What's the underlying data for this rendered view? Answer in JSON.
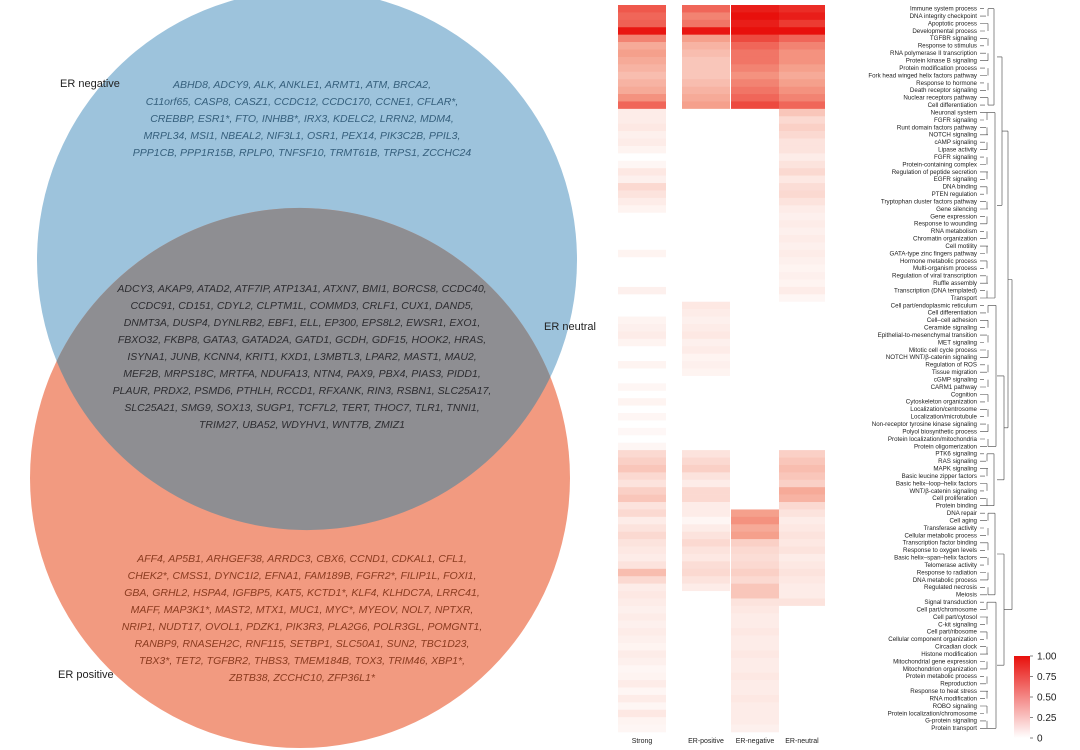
{
  "venn": {
    "sets": [
      {
        "label": "ER negative",
        "color": "#9dc3dc"
      },
      {
        "label": "ER neutral",
        "color": "#8e8e92"
      },
      {
        "label": "ER positive",
        "color": "#f29a80"
      }
    ],
    "negative_genes": [
      "ABHD8, ADCY9, ALK, ANKLE1, ARMT1, ATM, BRCA2,",
      "C11orf65, CASP8, CASZ1, CCDC12, CCDC170, CCNE1, CFLAR*,",
      "CREBBP, ESR1*, FTO, INHBB*, IRX3, KDELC2, LRRN2, MDM4,",
      "MRPL34, MSI1, NBEAL2, NIF3L1, OSR1, PEX14, PIK3C2B, PPIL3,",
      "PPP1CB, PPP1R15B, RPLP0, TNFSF10, TRMT61B, TRPS1, ZCCHC24"
    ],
    "neutral_genes": [
      "ADCY3, AKAP9, ATAD2, ATF7IP, ATP13A1, ATXN7, BMI1, BORCS8, CCDC40,",
      "CCDC91, CD151, CDYL2, CLPTM1L, COMMD3, CRLF1, CUX1, DAND5,",
      "DNMT3A, DUSP4, DYNLRB2, EBF1, ELL, EP300, EPS8L2, EWSR1, EXO1,",
      "FBXO32, FKBP8, GATA3, GATAD2A, GATD1, GCDH, GDF15, HOOK2, HRAS,",
      "ISYNA1, JUNB, KCNN4, KRIT1, KXD1, L3MBTL3, LPAR2, MAST1, MAU2,",
      "MEF2B, MRPS18C, MRTFA, NDUFA13, NTN4, PAX9, PBX4, PIAS3, PIDD1,",
      "PLAUR, PRDX2, PSMD6, PTHLH, RCCD1, RFXANK, RIN3, RSBN1, SLC25A17,",
      "SLC25A21, SMG9, SOX13, SUGP1, TCF7L2, TERT, THOC7, TLR1, TNNI1,",
      "TRIM27, UBA52, WDYHV1, WNT7B, ZMIZ1"
    ],
    "positive_genes": [
      "AFF4, AP5B1, ARHGEF38, ARRDC3, CBX6, CCND1, CDKAL1, CFL1,",
      "CHEK2*, CMSS1, DYNC1I2, EFNA1, FAM189B, FGFR2*, FILIP1L, FOXI1,",
      "GBA, GRHL2, HSPA4, IGFBP5, KAT5, KCTD1*, KLF4, KLHDC7A, LRRC41,",
      "MAFF, MAP3K1*, MAST2, MTX1, MUC1, MYC*, MYEOV, NOL7, NPTXR,",
      "NRIP1, NUDT17, OVOL1, PDZK1, PIK3R3, PLA2G6, POLR3GL, POMGNT1,",
      "RANBP9, RNASEH2C, RNF115, SETBP1, SLC50A1, SUN2, TBC1D23,",
      "TBX3*, TET2, TGFBR2, THBS3, TMEM184B, TOX3, TRIM46, XBP1*,",
      "ZBTB38, ZCCHC10, ZFP36L1*"
    ]
  },
  "chart_data": {
    "type": "heatmap",
    "columns": [
      "Strong",
      "ER-positive",
      "ER-negative",
      "ER-neutral"
    ],
    "colorbar": {
      "min": 0,
      "max": 1,
      "ticks": [
        "1.00",
        "0.75",
        "0.50",
        "0.25",
        "0"
      ],
      "low_color": "#ffffff",
      "high_color": "#e8100c"
    },
    "rows": [
      "Immune system process",
      "DNA integrity checkpoint",
      "Apoptotic process",
      "Developmental process",
      "TGFBR signaling",
      "Response to stimulus",
      "RNA polymerase II transcription",
      "Protein kinase B signaling",
      "Protein modification process",
      "Fork head winged helix factors pathway",
      "Response to hormone",
      "Death receptor signaling",
      "Nuclear receptors pathway",
      "Cell differentiation",
      "Neuronal system",
      "FGFR signaling",
      "Runt domain factors pathway",
      "NOTCH signaling",
      "cAMP signaling",
      "Lipase activity",
      "FGFR signaling",
      "Protein-containing complex",
      "Regulation of peptide secretion",
      "EGFR signaling",
      "DNA binding",
      "PTEN regulation",
      "Tryptophan cluster factors pathway",
      "Gene silencing",
      "Gene expression",
      "Response to wounding",
      "RNA metabolism",
      "Chromatin organization",
      "Cell motility",
      "GATA-type zinc fingers pathway",
      "Hormone metabolic process",
      "Multi-organism process",
      "Regulation of viral transcription",
      "Ruffle assembly",
      "Transcription (DNA templated)",
      "Transport",
      "Cell part/endoplasmic reticulum",
      "Cell differentiation",
      "Cell–cell adhesion",
      "Ceramide signaling",
      "Epithelial-to-mesenchymal transition",
      "MET signaling",
      "Mitotic cell cycle process",
      "NOTCH WNT/β-catenin signaling",
      "Regulation of ROS",
      "Tissue migration",
      "cGMP signaling",
      "CARM1 pathway",
      "Cognition",
      "Cytoskeleton organization",
      "Localization/centrosome",
      "Localization/microtubule",
      "Non-receptor tyrosine kinase signaling",
      "Polyol biosynthetic process",
      "Protein localization/mitochondria",
      "Protein oligomerization",
      "PTK6 signaling",
      "RAS signaling",
      "MAPK signaling",
      "Basic leucine zipper factors",
      "Basic helix–loop–helix factors",
      "WNT/β-catenin signaling",
      "Cell proliferation",
      "Protein binding",
      "DNA repair",
      "Cell aging",
      "Transferase activity",
      "Cellular metabolic process",
      "Transcription factor binding",
      "Response to oxygen levels",
      "Basic helix–span–helix factors",
      "Telomerase activity",
      "Response to radiation",
      "DNA metabolic process",
      "Regulated necrosis",
      "Meiosis",
      "Signal transduction",
      "Cell part/chromosome",
      "Cell part/cytosol",
      "C-kit signaling",
      "Cell part/ribosome",
      "Cellular component organization",
      "Circadian clock",
      "Histone modification",
      "Mitochondrial gene expression",
      "Mitochondrion organization",
      "Protein metabolic process",
      "Reproduction",
      "Response to heat stress",
      "RNA modification",
      "ROBO signaling",
      "Protein localization/chromosome",
      "G-protein signaling",
      "Protein transport"
    ],
    "values": [
      [
        0.75,
        0.7,
        0.95,
        0.9
      ],
      [
        0.7,
        0.6,
        1.0,
        0.95
      ],
      [
        0.72,
        0.65,
        0.95,
        0.85
      ],
      [
        0.98,
        0.98,
        1.0,
        1.0
      ],
      [
        0.6,
        0.5,
        0.8,
        0.7
      ],
      [
        0.45,
        0.4,
        0.7,
        0.6
      ],
      [
        0.5,
        0.35,
        0.65,
        0.55
      ],
      [
        0.45,
        0.3,
        0.65,
        0.55
      ],
      [
        0.4,
        0.3,
        0.6,
        0.5
      ],
      [
        0.35,
        0.3,
        0.55,
        0.45
      ],
      [
        0.4,
        0.35,
        0.6,
        0.5
      ],
      [
        0.45,
        0.4,
        0.65,
        0.55
      ],
      [
        0.55,
        0.45,
        0.7,
        0.6
      ],
      [
        0.7,
        0.5,
        0.8,
        0.7
      ],
      [
        0.1,
        0.0,
        0.0,
        0.3
      ],
      [
        0.1,
        0.0,
        0.0,
        0.2
      ],
      [
        0.12,
        0.0,
        0.0,
        0.25
      ],
      [
        0.08,
        0.0,
        0.0,
        0.2
      ],
      [
        0.1,
        0.0,
        0.0,
        0.15
      ],
      [
        0.06,
        0.0,
        0.0,
        0.15
      ],
      [
        0.0,
        0.0,
        0.0,
        0.1
      ],
      [
        0.05,
        0.0,
        0.0,
        0.15
      ],
      [
        0.12,
        0.0,
        0.0,
        0.2
      ],
      [
        0.08,
        0.0,
        0.0,
        0.12
      ],
      [
        0.2,
        0.0,
        0.0,
        0.18
      ],
      [
        0.15,
        0.0,
        0.0,
        0.2
      ],
      [
        0.1,
        0.0,
        0.0,
        0.15
      ],
      [
        0.06,
        0.0,
        0.0,
        0.1
      ],
      [
        0.0,
        0.0,
        0.0,
        0.08
      ],
      [
        0.0,
        0.0,
        0.0,
        0.1
      ],
      [
        0.0,
        0.0,
        0.0,
        0.08
      ],
      [
        0.0,
        0.0,
        0.0,
        0.1
      ],
      [
        0.0,
        0.0,
        0.0,
        0.08
      ],
      [
        0.06,
        0.0,
        0.0,
        0.1
      ],
      [
        0.0,
        0.0,
        0.0,
        0.08
      ],
      [
        0.0,
        0.0,
        0.0,
        0.06
      ],
      [
        0.0,
        0.0,
        0.0,
        0.08
      ],
      [
        0.0,
        0.0,
        0.0,
        0.06
      ],
      [
        0.08,
        0.0,
        0.0,
        0.1
      ],
      [
        0.0,
        0.0,
        0.0,
        0.05
      ],
      [
        0.0,
        0.12,
        0.0,
        0.0
      ],
      [
        0.0,
        0.1,
        0.0,
        0.0
      ],
      [
        0.06,
        0.08,
        0.0,
        0.0
      ],
      [
        0.08,
        0.1,
        0.0,
        0.0
      ],
      [
        0.1,
        0.12,
        0.0,
        0.0
      ],
      [
        0.06,
        0.08,
        0.0,
        0.0
      ],
      [
        0.0,
        0.1,
        0.0,
        0.0
      ],
      [
        0.0,
        0.06,
        0.0,
        0.0
      ],
      [
        0.06,
        0.08,
        0.0,
        0.0
      ],
      [
        0.0,
        0.06,
        0.0,
        0.0
      ],
      [
        0.0,
        0.0,
        0.0,
        0.0
      ],
      [
        0.05,
        0.0,
        0.0,
        0.0
      ],
      [
        0.0,
        0.0,
        0.0,
        0.0
      ],
      [
        0.06,
        0.0,
        0.0,
        0.0
      ],
      [
        0.0,
        0.0,
        0.0,
        0.0
      ],
      [
        0.05,
        0.0,
        0.0,
        0.0
      ],
      [
        0.0,
        0.0,
        0.0,
        0.0
      ],
      [
        0.04,
        0.0,
        0.0,
        0.0
      ],
      [
        0.0,
        0.0,
        0.0,
        0.0
      ],
      [
        0.05,
        0.0,
        0.0,
        0.0
      ],
      [
        0.2,
        0.15,
        0.0,
        0.25
      ],
      [
        0.25,
        0.2,
        0.0,
        0.3
      ],
      [
        0.3,
        0.25,
        0.0,
        0.35
      ],
      [
        0.2,
        0.15,
        0.0,
        0.3
      ],
      [
        0.15,
        0.1,
        0.0,
        0.25
      ],
      [
        0.25,
        0.2,
        0.0,
        0.45
      ],
      [
        0.3,
        0.2,
        0.0,
        0.4
      ],
      [
        0.15,
        0.1,
        0.0,
        0.2
      ],
      [
        0.2,
        0.1,
        0.5,
        0.15
      ],
      [
        0.1,
        0.05,
        0.55,
        0.1
      ],
      [
        0.15,
        0.1,
        0.45,
        0.12
      ],
      [
        0.2,
        0.15,
        0.5,
        0.15
      ],
      [
        0.15,
        0.2,
        0.25,
        0.12
      ],
      [
        0.12,
        0.15,
        0.2,
        0.15
      ],
      [
        0.1,
        0.12,
        0.18,
        0.1
      ],
      [
        0.15,
        0.18,
        0.2,
        0.12
      ],
      [
        0.35,
        0.2,
        0.25,
        0.15
      ],
      [
        0.2,
        0.15,
        0.2,
        0.12
      ],
      [
        0.1,
        0.1,
        0.3,
        0.1
      ],
      [
        0.12,
        0.0,
        0.3,
        0.1
      ],
      [
        0.1,
        0.0,
        0.15,
        0.15
      ],
      [
        0.08,
        0.0,
        0.12,
        0.0
      ],
      [
        0.1,
        0.0,
        0.1,
        0.0
      ],
      [
        0.08,
        0.0,
        0.1,
        0.0
      ],
      [
        0.1,
        0.0,
        0.12,
        0.0
      ],
      [
        0.08,
        0.0,
        0.1,
        0.0
      ],
      [
        0.06,
        0.0,
        0.1,
        0.0
      ],
      [
        0.1,
        0.0,
        0.12,
        0.0
      ],
      [
        0.08,
        0.0,
        0.1,
        0.0
      ],
      [
        0.05,
        0.0,
        0.1,
        0.0
      ],
      [
        0.06,
        0.0,
        0.12,
        0.0
      ],
      [
        0.1,
        0.0,
        0.1,
        0.0
      ],
      [
        0.05,
        0.0,
        0.1,
        0.0
      ],
      [
        0.1,
        0.0,
        0.12,
        0.0
      ],
      [
        0.05,
        0.0,
        0.1,
        0.0
      ],
      [
        0.12,
        0.0,
        0.1,
        0.0
      ],
      [
        0.06,
        0.0,
        0.1,
        0.0
      ],
      [
        0.05,
        0.0,
        0.08,
        0.0
      ]
    ]
  }
}
